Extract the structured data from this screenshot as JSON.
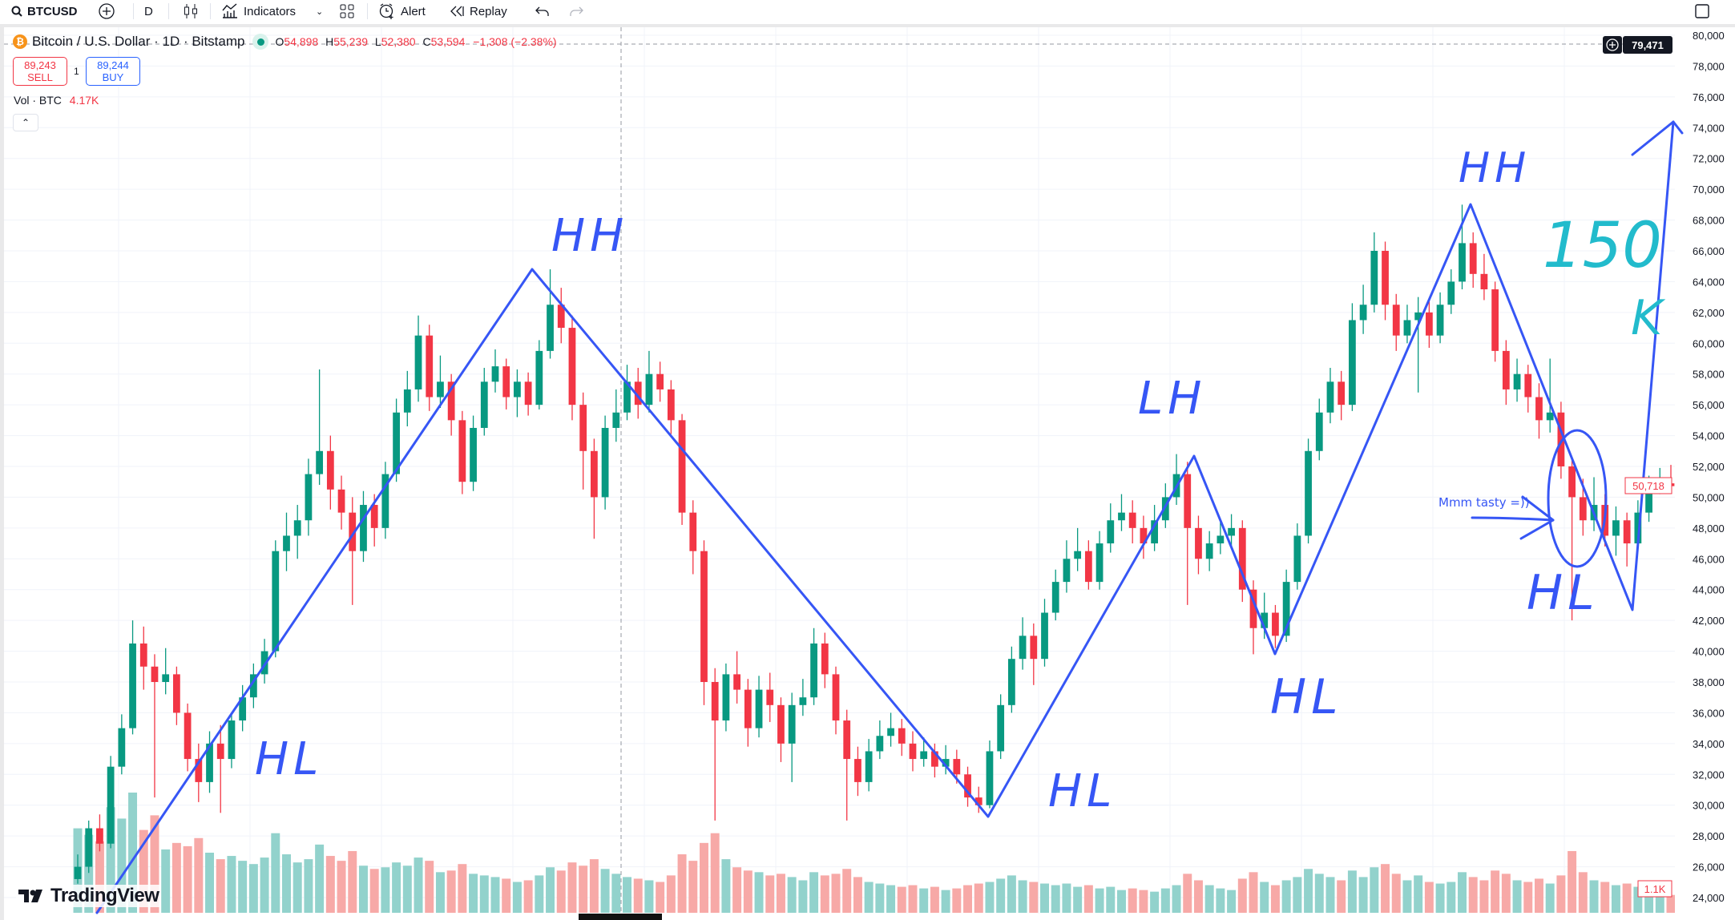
{
  "toolbar": {
    "symbol": "BTCUSD",
    "interval": "D",
    "indicators": "Indicators",
    "alert": "Alert",
    "replay": "Replay"
  },
  "legend": {
    "title": "Bitcoin / U.S. Dollar · 1D · Bitstamp",
    "o_label": "O",
    "o": "54,898",
    "h_label": "H",
    "h": "55,239",
    "l_label": "L",
    "l": "52,380",
    "c_label": "C",
    "c": "53,594",
    "change": "−1,308 (−2.38%)"
  },
  "trade": {
    "sell_price": "89,243",
    "sell_label": "SELL",
    "qty": "1",
    "buy_price": "89,244",
    "buy_label": "BUY"
  },
  "volume": {
    "label": "Vol · BTC",
    "value": "4.17K",
    "axis_label": "1.1K"
  },
  "crosshair": {
    "price": "79,471"
  },
  "last_price": "50,718",
  "colors": {
    "up": "#089981",
    "down": "#f23645",
    "vol_up": "#92d2cc",
    "vol_down": "#f7a9a7",
    "drawing": "#3656f5",
    "drawing_alt": "#22bbcc"
  },
  "annotations": {
    "hh1": "HH",
    "hl1": "HL",
    "hl2": "HL",
    "lh": "LH",
    "hl3": "HL",
    "hh2": "HH",
    "hl4": "HL",
    "target": "150",
    "target_unit": "K",
    "note": "Mmm tasty =))"
  },
  "branding": "TradingView",
  "chart_data": {
    "type": "candlestick",
    "y_ticks": [
      24000,
      26000,
      28000,
      30000,
      32000,
      34000,
      36000,
      38000,
      40000,
      42000,
      44000,
      46000,
      48000,
      50000,
      52000,
      54000,
      56000,
      58000,
      60000,
      62000,
      64000,
      66000,
      68000,
      70000,
      72000,
      74000,
      76000,
      78000,
      80000
    ],
    "ylim": [
      24000,
      80000
    ],
    "grid": true,
    "candles_ohlcv": [
      [
        25200,
        26800,
        24900,
        26000,
        5200
      ],
      [
        26000,
        29000,
        25600,
        28500,
        4800
      ],
      [
        28500,
        29400,
        27000,
        27500,
        4400
      ],
      [
        27500,
        33200,
        27200,
        32500,
        6500
      ],
      [
        32500,
        35900,
        32000,
        35000,
        5800
      ],
      [
        35000,
        42000,
        34600,
        40500,
        7400
      ],
      [
        40500,
        41600,
        37500,
        39000,
        5100
      ],
      [
        39000,
        39800,
        30500,
        38000,
        6000
      ],
      [
        38000,
        40200,
        37200,
        38500,
        3900
      ],
      [
        38500,
        39000,
        35200,
        36000,
        4300
      ],
      [
        36000,
        36600,
        32200,
        33000,
        4100
      ],
      [
        33000,
        34000,
        30200,
        31500,
        4600
      ],
      [
        31500,
        34800,
        30800,
        34000,
        3700
      ],
      [
        34000,
        35200,
        29500,
        33000,
        3300
      ],
      [
        33000,
        36000,
        32400,
        35500,
        3500
      ],
      [
        35500,
        37800,
        34800,
        37000,
        3200
      ],
      [
        37000,
        39200,
        36300,
        38500,
        3000
      ],
      [
        38500,
        40800,
        37900,
        40000,
        3400
      ],
      [
        40000,
        47200,
        39600,
        46500,
        4900
      ],
      [
        46500,
        49000,
        45200,
        47500,
        3600
      ],
      [
        47500,
        49500,
        46000,
        48500,
        3100
      ],
      [
        48500,
        52500,
        47500,
        51500,
        3300
      ],
      [
        51500,
        58300,
        50800,
        53000,
        4200
      ],
      [
        53000,
        54000,
        49200,
        50500,
        3500
      ],
      [
        50500,
        51400,
        47900,
        49000,
        3200
      ],
      [
        49000,
        50000,
        43000,
        46500,
        3800
      ],
      [
        46500,
        50400,
        45800,
        49500,
        2900
      ],
      [
        49500,
        50200,
        46800,
        48000,
        2700
      ],
      [
        48000,
        52300,
        47300,
        51500,
        2800
      ],
      [
        51500,
        56400,
        51000,
        55500,
        3100
      ],
      [
        55500,
        58200,
        54600,
        57000,
        2900
      ],
      [
        57000,
        61800,
        56200,
        60500,
        3400
      ],
      [
        60500,
        61200,
        55600,
        56500,
        3200
      ],
      [
        56500,
        59200,
        55800,
        57500,
        2500
      ],
      [
        57500,
        58000,
        54000,
        55000,
        2600
      ],
      [
        55000,
        55600,
        50200,
        51000,
        3000
      ],
      [
        51000,
        55300,
        50400,
        54500,
        2400
      ],
      [
        54500,
        58400,
        54000,
        57500,
        2300
      ],
      [
        57500,
        59600,
        56800,
        58500,
        2200
      ],
      [
        58500,
        59000,
        55700,
        56500,
        2100
      ],
      [
        56500,
        58300,
        55200,
        57500,
        1900
      ],
      [
        57500,
        58100,
        55300,
        56000,
        2000
      ],
      [
        56000,
        60200,
        55700,
        59500,
        2300
      ],
      [
        59500,
        64800,
        59000,
        62500,
        2800
      ],
      [
        62500,
        63600,
        60000,
        61000,
        2600
      ],
      [
        61000,
        61800,
        55000,
        56000,
        3100
      ],
      [
        56000,
        56800,
        50500,
        53000,
        2900
      ],
      [
        53000,
        53800,
        47300,
        50000,
        3300
      ],
      [
        50000,
        55300,
        49200,
        54500,
        2700
      ],
      [
        54500,
        57000,
        53600,
        55500,
        2400
      ],
      [
        55500,
        58600,
        55000,
        57500,
        2200
      ],
      [
        57500,
        58400,
        55100,
        56000,
        2100
      ],
      [
        56000,
        59500,
        55500,
        58000,
        2000
      ],
      [
        58000,
        58800,
        56200,
        57000,
        1900
      ],
      [
        57000,
        57600,
        54100,
        55000,
        2300
      ],
      [
        55000,
        55400,
        48200,
        49000,
        3600
      ],
      [
        49000,
        49800,
        45000,
        46500,
        3200
      ],
      [
        46500,
        47200,
        36500,
        38000,
        4300
      ],
      [
        38000,
        38900,
        29000,
        35500,
        4900
      ],
      [
        35500,
        39200,
        34800,
        38500,
        3300
      ],
      [
        38500,
        40000,
        36600,
        37500,
        2800
      ],
      [
        37500,
        38200,
        33800,
        35000,
        2600
      ],
      [
        35000,
        38400,
        34400,
        37500,
        2500
      ],
      [
        37500,
        38600,
        35400,
        36500,
        2300
      ],
      [
        36500,
        37000,
        32800,
        34000,
        2400
      ],
      [
        34000,
        37300,
        31500,
        36500,
        2200
      ],
      [
        36500,
        38200,
        35800,
        37000,
        2000
      ],
      [
        37000,
        41500,
        36500,
        40500,
        2500
      ],
      [
        40500,
        41200,
        37600,
        38500,
        2300
      ],
      [
        38500,
        39000,
        34600,
        35500,
        2400
      ],
      [
        35500,
        36200,
        29000,
        33000,
        2700
      ],
      [
        33000,
        33800,
        30600,
        31500,
        2200
      ],
      [
        31500,
        34300,
        30900,
        33500,
        1900
      ],
      [
        33500,
        35500,
        33000,
        34500,
        1800
      ],
      [
        34500,
        36000,
        33800,
        35000,
        1700
      ],
      [
        35000,
        35600,
        33200,
        34000,
        1600
      ],
      [
        34000,
        34800,
        32200,
        33000,
        1700
      ],
      [
        33000,
        34400,
        32500,
        33500,
        1500
      ],
      [
        33500,
        34000,
        31800,
        32500,
        1600
      ],
      [
        32500,
        33900,
        32000,
        33000,
        1400
      ],
      [
        33000,
        33600,
        31400,
        32000,
        1500
      ],
      [
        32000,
        32500,
        29900,
        30500,
        1700
      ],
      [
        30500,
        31200,
        29500,
        30000,
        1800
      ],
      [
        30000,
        34200,
        29800,
        33500,
        1900
      ],
      [
        33500,
        37200,
        33000,
        36500,
        2100
      ],
      [
        36500,
        40300,
        36000,
        39500,
        2300
      ],
      [
        39500,
        42200,
        38800,
        41000,
        2000
      ],
      [
        41000,
        41800,
        37800,
        39500,
        1900
      ],
      [
        39500,
        43400,
        39000,
        42500,
        1800
      ],
      [
        42500,
        45300,
        42000,
        44500,
        1700
      ],
      [
        44500,
        47200,
        43800,
        46000,
        1800
      ],
      [
        46000,
        48000,
        45200,
        46500,
        1600
      ],
      [
        46500,
        47200,
        44000,
        44500,
        1700
      ],
      [
        44500,
        47800,
        44000,
        47000,
        1500
      ],
      [
        47000,
        49600,
        46400,
        48500,
        1600
      ],
      [
        48500,
        50200,
        47800,
        49000,
        1400
      ],
      [
        49000,
        49800,
        47000,
        48000,
        1500
      ],
      [
        48000,
        48800,
        46000,
        47000,
        1400
      ],
      [
        47000,
        49500,
        46500,
        48500,
        1300
      ],
      [
        48500,
        50900,
        48000,
        50000,
        1500
      ],
      [
        50000,
        52800,
        49500,
        51500,
        1700
      ],
      [
        51500,
        52300,
        43000,
        48000,
        2400
      ],
      [
        48000,
        48800,
        45000,
        46000,
        2000
      ],
      [
        46000,
        47800,
        45200,
        47000,
        1700
      ],
      [
        47000,
        48400,
        46300,
        47500,
        1500
      ],
      [
        47500,
        48900,
        46800,
        48000,
        1400
      ],
      [
        48000,
        48500,
        43200,
        44000,
        2100
      ],
      [
        44000,
        44600,
        39800,
        41500,
        2500
      ],
      [
        41500,
        43800,
        40800,
        42500,
        1900
      ],
      [
        42500,
        43000,
        40200,
        41000,
        1700
      ],
      [
        41000,
        45300,
        40600,
        44500,
        2000
      ],
      [
        44500,
        48300,
        44000,
        47500,
        2200
      ],
      [
        47500,
        53800,
        47000,
        53000,
        2700
      ],
      [
        53000,
        56400,
        52400,
        55500,
        2400
      ],
      [
        55500,
        58400,
        54800,
        57500,
        2200
      ],
      [
        57500,
        58200,
        55000,
        56000,
        2000
      ],
      [
        56000,
        62600,
        55600,
        61500,
        2600
      ],
      [
        61500,
        63800,
        60600,
        62500,
        2200
      ],
      [
        62500,
        67200,
        62000,
        66000,
        2800
      ],
      [
        66000,
        66600,
        61500,
        62500,
        3000
      ],
      [
        62500,
        63200,
        59500,
        60500,
        2400
      ],
      [
        60500,
        62500,
        60000,
        61500,
        2000
      ],
      [
        61500,
        63000,
        56800,
        62000,
        2300
      ],
      [
        62000,
        62800,
        59700,
        60500,
        1900
      ],
      [
        60500,
        63300,
        60000,
        62500,
        1800
      ],
      [
        62500,
        64800,
        61900,
        64000,
        1900
      ],
      [
        64000,
        69000,
        63500,
        66500,
        2500
      ],
      [
        66500,
        67200,
        63600,
        64500,
        2200
      ],
      [
        64500,
        65800,
        62800,
        63500,
        2000
      ],
      [
        63500,
        64000,
        58800,
        59500,
        2600
      ],
      [
        59500,
        60200,
        56000,
        57000,
        2400
      ],
      [
        57000,
        59000,
        56200,
        58000,
        2000
      ],
      [
        58000,
        58600,
        55500,
        56500,
        1900
      ],
      [
        56500,
        57400,
        53800,
        55000,
        2100
      ],
      [
        55000,
        59000,
        54200,
        55500,
        1800
      ],
      [
        55500,
        56200,
        51200,
        52000,
        2300
      ],
      [
        52000,
        52600,
        42000,
        50000,
        3800
      ],
      [
        50000,
        51200,
        47500,
        48500,
        2500
      ],
      [
        48500,
        51300,
        47800,
        49500,
        2000
      ],
      [
        49500,
        50200,
        46800,
        47500,
        1900
      ],
      [
        47500,
        49400,
        46200,
        48500,
        1700
      ],
      [
        48500,
        49000,
        45500,
        47000,
        1800
      ],
      [
        47000,
        49800,
        46500,
        49000,
        1600
      ],
      [
        49000,
        51400,
        48400,
        50500,
        1700
      ],
      [
        50500,
        51900,
        50200,
        50900,
        1500
      ],
      [
        50900,
        52100,
        50300,
        50718,
        1100
      ]
    ]
  }
}
